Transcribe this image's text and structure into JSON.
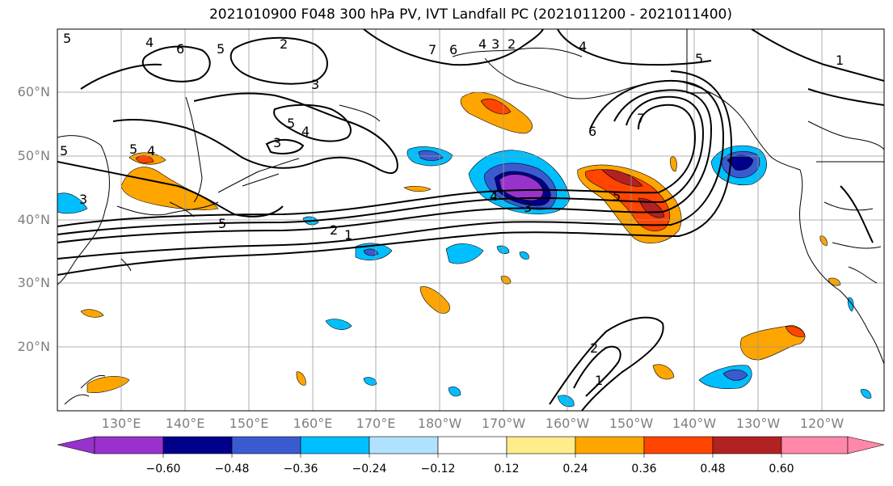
{
  "title": "2021010900 F048 300 hPa PV, IVT Landfall PC (2021011200 - 2021011400)",
  "map": {
    "lat_labels": [
      "60°N",
      "50°N",
      "40°N",
      "30°N",
      "20°N"
    ],
    "lon_labels": [
      "130°E",
      "140°E",
      "150°E",
      "160°E",
      "170°E",
      "180°W",
      "170°W",
      "160°W",
      "150°W",
      "140°W",
      "130°W",
      "120°W"
    ],
    "contour_labels": [
      "5",
      "4",
      "6",
      "5",
      "2",
      "7",
      "6",
      "4",
      "3",
      "2",
      "4",
      "5",
      "1",
      "3",
      "5",
      "4",
      "3",
      "6",
      "7",
      "5",
      "4",
      "4",
      "3",
      "5",
      "3",
      "5",
      "2",
      "1",
      "2",
      "1",
      "5"
    ]
  },
  "colorbar": {
    "ticks": [
      "−0.60",
      "−0.48",
      "−0.36",
      "−0.24",
      "−0.12",
      "0.12",
      "0.24",
      "0.36",
      "0.48",
      "0.60"
    ],
    "colors": [
      "#9932cc",
      "#00008b",
      "#3a5bd0",
      "#00bfff",
      "#b0e2ff",
      "#ffffff",
      "#ffec8b",
      "#ffa500",
      "#ff4500",
      "#b22222",
      "#ff88aa"
    ]
  }
}
